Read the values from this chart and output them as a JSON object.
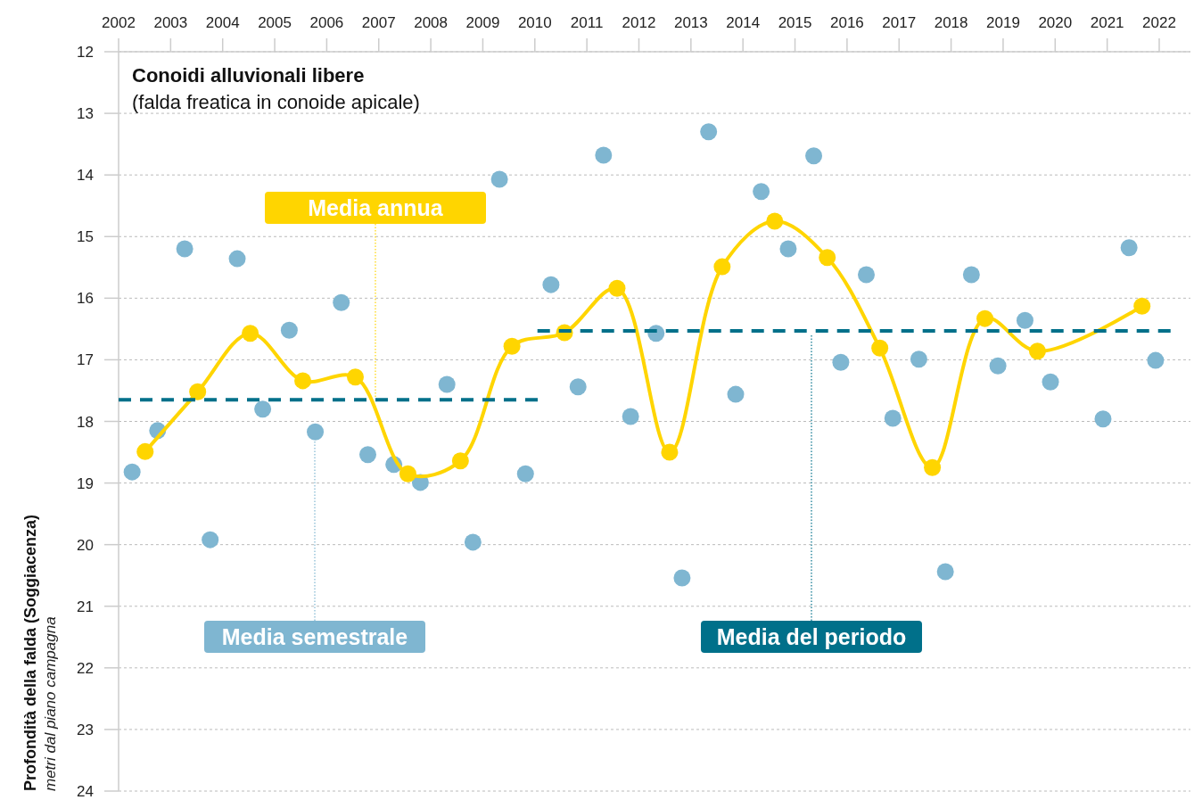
{
  "chart_data": {
    "type": "line",
    "title": "Conoidi alluvionali libere",
    "subtitle": "(falda freatica in conoide apicale)",
    "ylabel": "Profondità della falda (Soggiacenza)",
    "annotations": [
      "metri dal piano campagna"
    ],
    "xlim": [
      2002,
      2022.6
    ],
    "xticks": [
      2002,
      2003,
      2004,
      2005,
      2006,
      2007,
      2008,
      2009,
      2010,
      2011,
      2012,
      2013,
      2014,
      2015,
      2016,
      2017,
      2018,
      2019,
      2020,
      2021,
      2022
    ],
    "ylim": [
      24,
      12
    ],
    "yticks": [
      12,
      13,
      14,
      15,
      16,
      17,
      18,
      19,
      20,
      21,
      22,
      23,
      24
    ],
    "grid": "y",
    "series": [
      {
        "name": "Media semestrale",
        "type": "scatter",
        "marker": "circle",
        "color": "#7fb6d1",
        "x": [
          2002.26,
          2002.75,
          2003.27,
          2003.76,
          2004.28,
          2004.77,
          2005.28,
          2005.78,
          2006.28,
          2006.79,
          2007.29,
          2007.8,
          2008.31,
          2008.81,
          2009.32,
          2009.82,
          2010.31,
          2010.83,
          2011.32,
          2011.84,
          2012.33,
          2012.83,
          2013.34,
          2013.86,
          2014.35,
          2014.87,
          2015.36,
          2015.88,
          2016.37,
          2016.88,
          2017.38,
          2017.89,
          2018.39,
          2018.9,
          2019.42,
          2019.91,
          2020.92,
          2021.42,
          2021.93
        ],
        "values": [
          18.82,
          18.15,
          15.2,
          19.92,
          15.36,
          17.8,
          16.52,
          18.17,
          16.07,
          18.54,
          18.7,
          18.99,
          17.4,
          19.96,
          14.07,
          18.85,
          15.78,
          17.44,
          13.68,
          17.92,
          16.57,
          20.54,
          13.3,
          17.56,
          14.27,
          15.2,
          13.69,
          17.04,
          15.62,
          17.95,
          16.99,
          20.44,
          15.62,
          17.1,
          16.36,
          17.36,
          17.96,
          15.18,
          17.01
        ]
      },
      {
        "name": "Media annua",
        "marker": "circle",
        "color": "#ffd500",
        "x": [
          2002.51,
          2003.52,
          2004.53,
          2005.54,
          2006.55,
          2007.56,
          2008.57,
          2009.56,
          2010.57,
          2011.58,
          2012.59,
          2013.6,
          2014.61,
          2015.62,
          2016.63,
          2017.64,
          2018.65,
          2019.66,
          2021.67
        ],
        "values": [
          18.49,
          17.52,
          16.57,
          17.34,
          17.28,
          18.85,
          18.64,
          16.78,
          16.56,
          15.84,
          18.5,
          15.49,
          14.75,
          15.34,
          16.81,
          18.75,
          16.33,
          16.86,
          16.13
        ]
      },
      {
        "name": "Media del periodo",
        "marker": "none",
        "line_style": "dashed",
        "color": "#00708a",
        "x": [
          2002,
          2010.1
        ],
        "values": [
          17.65,
          17.65
        ]
      },
      {
        "marker": "none",
        "line_style": "dashed",
        "color": "#00708a",
        "x": [
          2010.05,
          2022.3
        ],
        "values": [
          16.53,
          16.53
        ]
      }
    ]
  }
}
